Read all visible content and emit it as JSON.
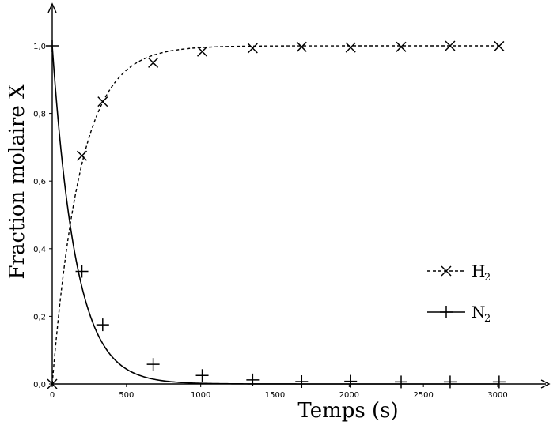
{
  "chart_data": {
    "type": "scatter",
    "xlabel": "Temps (s)",
    "ylabel": "Fraction molaire X",
    "xlim": [
      0,
      3300
    ],
    "ylim": [
      0,
      1.05
    ],
    "xticks": [
      0,
      500,
      1000,
      1500,
      2000,
      2500,
      3000
    ],
    "xtick_labels": [
      "0",
      "500",
      "1000",
      "1500",
      "2000",
      "2500",
      "3000"
    ],
    "yticks": [
      0,
      0.2,
      0.4,
      0.6,
      0.8,
      1.0
    ],
    "ytick_labels": [
      "0,0",
      "0,2",
      "0,4",
      "0,6",
      "0,8",
      "1,0"
    ],
    "legend_position": "right",
    "grid": false,
    "series": [
      {
        "name": "H",
        "name_subscript": "2",
        "marker": "x",
        "line_style": "dashed",
        "points": [
          [
            0,
            0.0
          ],
          [
            200,
            0.675
          ],
          [
            340,
            0.835
          ],
          [
            680,
            0.95
          ],
          [
            1010,
            0.983
          ],
          [
            1350,
            0.993
          ],
          [
            1680,
            0.997
          ],
          [
            2010,
            0.995
          ],
          [
            2350,
            0.997
          ],
          [
            2680,
            1.0
          ],
          [
            3010,
            0.999
          ]
        ],
        "fit": {
          "model": "1 - exp(-x/tau)",
          "tau": 190
        }
      },
      {
        "name": "N",
        "name_subscript": "2",
        "marker": "+",
        "line_style": "solid",
        "points": [
          [
            0,
            1.0
          ],
          [
            200,
            0.333
          ],
          [
            340,
            0.175
          ],
          [
            680,
            0.058
          ],
          [
            1010,
            0.025
          ],
          [
            1350,
            0.012
          ],
          [
            1680,
            0.007
          ],
          [
            2010,
            0.008
          ],
          [
            2350,
            0.006
          ],
          [
            2680,
            0.006
          ],
          [
            3010,
            0.006
          ]
        ],
        "fit": {
          "model": "exp(-x/tau)",
          "tau": 160
        }
      }
    ]
  }
}
